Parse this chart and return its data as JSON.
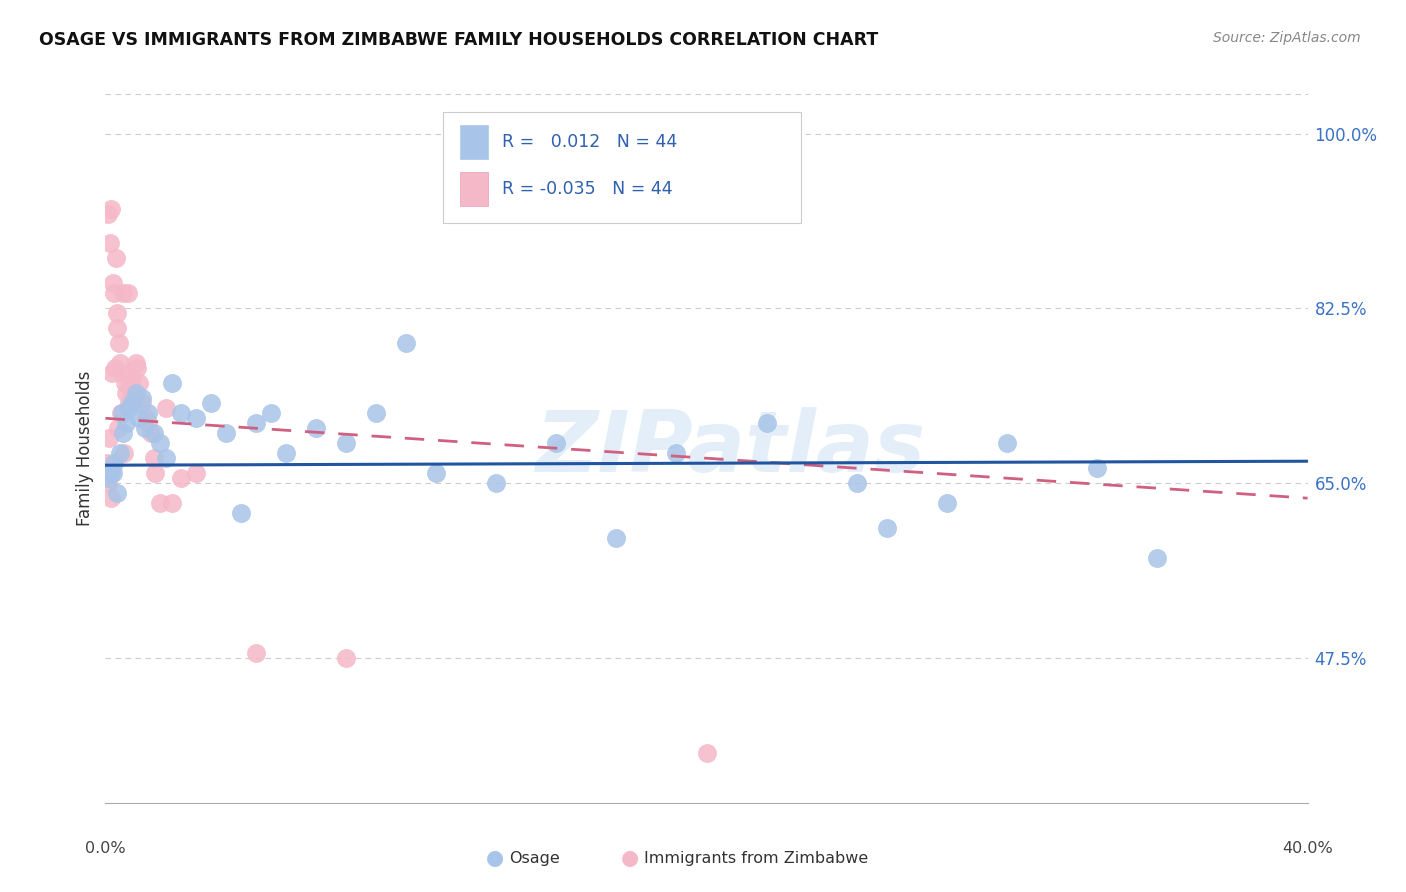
{
  "title": "OSAGE VS IMMIGRANTS FROM ZIMBABWE FAMILY HOUSEHOLDS CORRELATION CHART",
  "source": "Source: ZipAtlas.com",
  "ylabel": "Family Households",
  "yticks": [
    47.5,
    65.0,
    82.5,
    100.0
  ],
  "ytick_labels": [
    "47.5%",
    "65.0%",
    "82.5%",
    "100.0%"
  ],
  "xlim": [
    0.0,
    40.0
  ],
  "ylim": [
    33.0,
    104.0
  ],
  "legend_r_blue": " 0.012",
  "legend_r_pink": "-0.035",
  "legend_n": "44",
  "blue_scatter": "#a8c4e8",
  "pink_scatter": "#f5b8c8",
  "trend_blue": "#2155a0",
  "trend_pink": "#d06080",
  "watermark": "ZIPatlas",
  "osage_x": [
    0.1,
    0.2,
    0.3,
    0.4,
    0.5,
    0.6,
    0.7,
    0.8,
    0.9,
    1.0,
    1.1,
    1.2,
    1.4,
    1.6,
    1.8,
    2.0,
    2.5,
    3.0,
    3.5,
    4.0,
    5.0,
    5.5,
    6.0,
    7.0,
    8.0,
    9.0,
    10.0,
    11.0,
    13.0,
    15.0,
    17.0,
    19.0,
    22.0,
    25.0,
    28.0,
    30.0,
    33.0,
    35.0,
    0.25,
    0.55,
    1.3,
    2.2,
    4.5,
    26.0
  ],
  "osage_y": [
    65.5,
    66.0,
    67.0,
    64.0,
    68.0,
    70.0,
    71.0,
    72.5,
    73.0,
    74.0,
    71.5,
    73.5,
    72.0,
    70.0,
    69.0,
    67.5,
    72.0,
    71.5,
    73.0,
    70.0,
    71.0,
    72.0,
    68.0,
    70.5,
    69.0,
    72.0,
    79.0,
    66.0,
    65.0,
    69.0,
    59.5,
    68.0,
    71.0,
    65.0,
    63.0,
    69.0,
    66.5,
    57.5,
    66.0,
    72.0,
    70.5,
    75.0,
    62.0,
    60.5
  ],
  "zimb_x": [
    0.05,
    0.1,
    0.15,
    0.2,
    0.25,
    0.3,
    0.35,
    0.4,
    0.45,
    0.5,
    0.55,
    0.6,
    0.65,
    0.7,
    0.75,
    0.8,
    0.9,
    1.0,
    1.1,
    1.2,
    1.4,
    1.5,
    1.6,
    1.8,
    2.0,
    2.5,
    3.0,
    0.12,
    0.22,
    0.32,
    0.42,
    0.52,
    0.62,
    0.82,
    1.05,
    1.35,
    1.65,
    0.08,
    0.18,
    2.2,
    5.0,
    8.0,
    20.0,
    0.38
  ],
  "zimb_y": [
    67.0,
    92.0,
    89.0,
    92.5,
    85.0,
    84.0,
    87.5,
    82.0,
    79.0,
    77.0,
    76.0,
    84.0,
    75.0,
    74.0,
    84.0,
    73.0,
    75.5,
    77.0,
    75.0,
    73.0,
    71.0,
    70.0,
    67.5,
    63.0,
    72.5,
    65.5,
    66.0,
    69.5,
    76.0,
    76.5,
    70.5,
    72.0,
    68.0,
    74.5,
    76.5,
    71.5,
    66.0,
    65.0,
    63.5,
    63.0,
    48.0,
    47.5,
    38.0,
    80.5
  ],
  "blue_trend_x0": 0.0,
  "blue_trend_y0": 66.8,
  "blue_trend_x1": 40.0,
  "blue_trend_y1": 67.2,
  "pink_trend_x0": 0.0,
  "pink_trend_y0": 71.5,
  "pink_trend_x1": 40.0,
  "pink_trend_y1": 63.5
}
